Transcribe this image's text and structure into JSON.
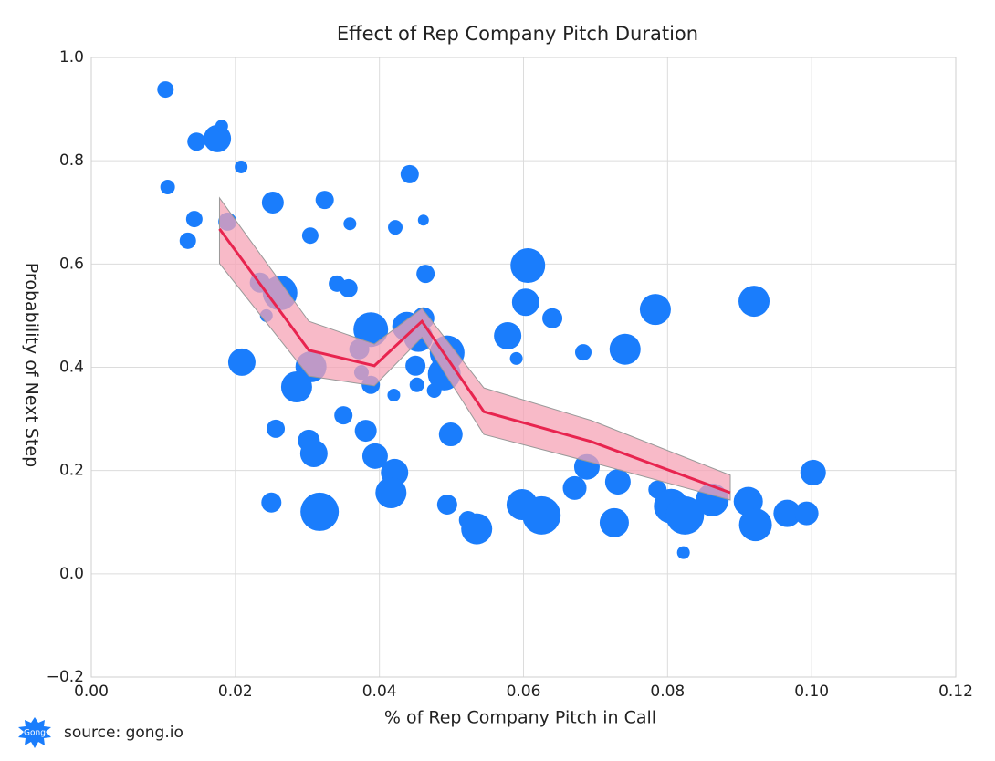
{
  "chart_data": {
    "type": "scatter",
    "title": "Effect of Rep Company Pitch Duration",
    "x_label": "% of Rep Company Pitch in Call",
    "y_label": "Probability of Next Step",
    "source": "source: gong.io",
    "logo": "Gong",
    "xlim": [
      0,
      0.12
    ],
    "ylim": [
      -0.2,
      1.0
    ],
    "xticks": [
      {
        "value": 0,
        "label": "0.00"
      },
      0.02,
      0.04,
      0.06,
      0.08,
      {
        "value": 0.1,
        "label": "0.10"
      },
      0.12
    ],
    "yticks": [
      {
        "value": -0.2,
        "label": "−0.2"
      },
      {
        "value": 0,
        "label": "0.0"
      },
      0.2,
      0.4,
      0.6,
      0.8,
      {
        "value": 1,
        "label": "1.0"
      }
    ],
    "grid": true,
    "color": "#1a7dfc",
    "x": [
      0.0103,
      0.0106,
      0.0146,
      0.0175,
      0.0181,
      0.0208,
      0.0143,
      0.0134,
      0.0189,
      0.0252,
      0.0324,
      0.0359,
      0.0304,
      0.0442,
      0.0422,
      0.0461,
      0.0464,
      0.0234,
      0.0262,
      0.0243,
      0.0341,
      0.0357,
      0.0209,
      0.0305,
      0.0285,
      0.0388,
      0.0372,
      0.0375,
      0.0388,
      0.0438,
      0.0454,
      0.0461,
      0.045,
      0.0452,
      0.042,
      0.0476,
      0.0494,
      0.049,
      0.0578,
      0.059,
      0.0606,
      0.0603,
      0.064,
      0.0683,
      0.0741,
      0.0783,
      0.092,
      0.1002,
      0.035,
      0.0256,
      0.0302,
      0.0309,
      0.0381,
      0.0394,
      0.0421,
      0.0416,
      0.0499,
      0.025,
      0.0317,
      0.0494,
      0.0523,
      0.0535,
      0.0598,
      0.0625,
      0.0671,
      0.0688,
      0.0731,
      0.0726,
      0.0786,
      0.0805,
      0.0824,
      0.0862,
      0.0822,
      0.0912,
      0.0922,
      0.0966,
      0.0993
    ],
    "y": [
      0.938,
      0.749,
      0.837,
      0.843,
      0.867,
      0.788,
      0.687,
      0.645,
      0.682,
      0.719,
      0.724,
      0.678,
      0.655,
      0.774,
      0.671,
      0.685,
      0.581,
      0.564,
      0.544,
      0.5,
      0.562,
      0.553,
      0.41,
      0.401,
      0.362,
      0.473,
      0.435,
      0.39,
      0.366,
      0.479,
      0.458,
      0.495,
      0.403,
      0.366,
      0.346,
      0.355,
      0.428,
      0.387,
      0.461,
      0.417,
      0.597,
      0.526,
      0.495,
      0.429,
      0.435,
      0.512,
      0.528,
      0.196,
      0.307,
      0.281,
      0.258,
      0.233,
      0.277,
      0.228,
      0.196,
      0.157,
      0.27,
      0.138,
      0.12,
      0.134,
      0.104,
      0.087,
      0.134,
      0.113,
      0.166,
      0.207,
      0.178,
      0.099,
      0.163,
      0.131,
      0.113,
      0.143,
      0.041,
      0.14,
      0.095,
      0.117,
      0.117
    ],
    "sizes": [
      9,
      8,
      10,
      15,
      7,
      7,
      9,
      9,
      10,
      12,
      10,
      7,
      9,
      10,
      8,
      6,
      10,
      11,
      19,
      7,
      9,
      10,
      15,
      17,
      17,
      19,
      11,
      8,
      10,
      16,
      16,
      12,
      11,
      8,
      7,
      8,
      19,
      18,
      15,
      7,
      19,
      15,
      11,
      9,
      17,
      17,
      17,
      14,
      10,
      10,
      12,
      15,
      12,
      14,
      15,
      17,
      13,
      11,
      21,
      11,
      10,
      17,
      17,
      21,
      13,
      14,
      14,
      16,
      10,
      19,
      21,
      18,
      7,
      16,
      18,
      15,
      13
    ],
    "line": {
      "color": "#e8244f",
      "band_color": "#f5a3b6",
      "x": [
        0.0178,
        0.0302,
        0.0393,
        0.0459,
        0.0545,
        0.0694,
        0.0887
      ],
      "y": [
        0.668,
        0.433,
        0.403,
        0.489,
        0.314,
        0.256,
        0.157
      ],
      "upper": [
        0.728,
        0.489,
        0.445,
        0.514,
        0.36,
        0.297,
        0.191
      ],
      "lower": [
        0.601,
        0.383,
        0.364,
        0.458,
        0.27,
        0.216,
        0.143
      ]
    }
  }
}
